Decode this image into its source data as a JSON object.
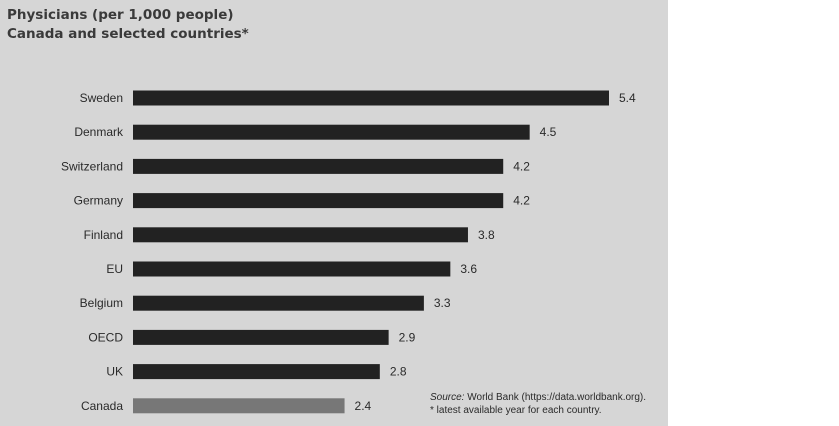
{
  "chart_data": {
    "type": "bar",
    "orientation": "horizontal",
    "title": "Physicians (per 1,000 people)",
    "subtitle": "Canada and selected countries*",
    "categories": [
      "Sweden",
      "Denmark",
      "Switzerland",
      "Germany",
      "Finland",
      "EU",
      "Belgium",
      "OECD",
      "UK",
      "Canada"
    ],
    "values": [
      5.4,
      4.5,
      4.2,
      4.2,
      3.8,
      3.6,
      3.3,
      2.9,
      2.8,
      2.4
    ],
    "value_labels": [
      "5.4",
      "4.5",
      "4.2",
      "4.2",
      "3.8",
      "3.6",
      "3.3",
      "2.9",
      "2.8",
      "2.4"
    ],
    "bar_color": "#222222",
    "highlight_category": "Canada",
    "highlight_color": "#777777",
    "xlim": [
      0,
      5.4
    ],
    "grid": false,
    "legend": "none"
  },
  "source": {
    "label": "Source:",
    "text": "World Bank (https://data.worldbank.org).",
    "note": "* latest available year for each country."
  }
}
